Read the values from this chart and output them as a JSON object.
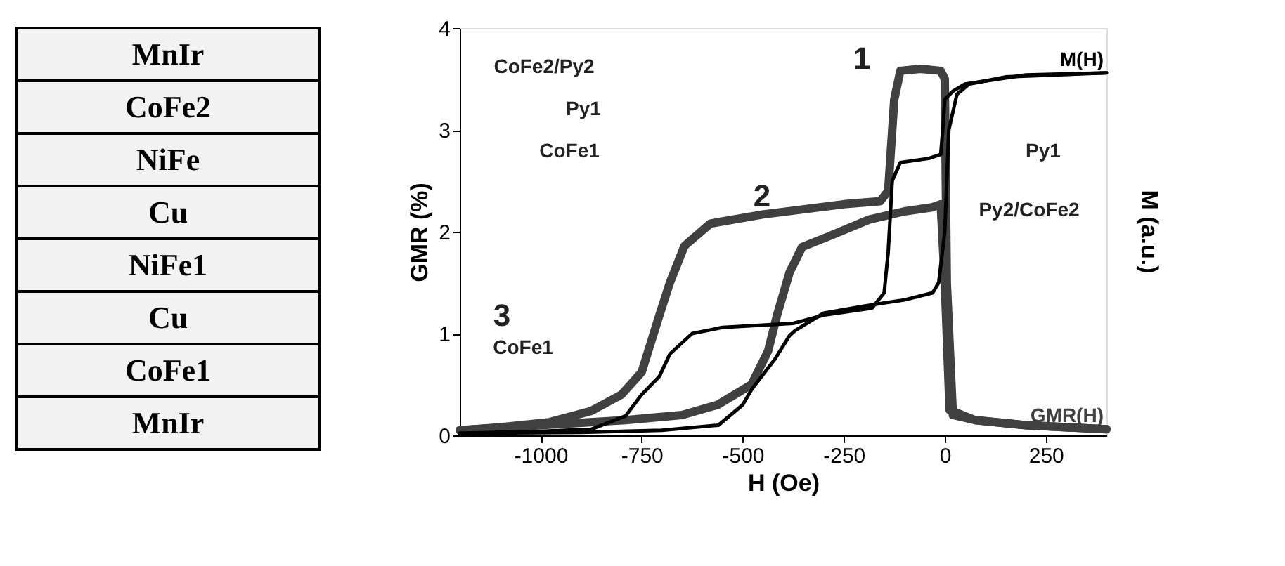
{
  "chart_data": [
    {
      "type": "other",
      "annotations": [
        "MnIr",
        "CoFe2",
        "NiFe",
        "Cu",
        "NiFe1",
        "Cu",
        "CoFe1",
        "MnIr"
      ]
    },
    {
      "type": "line",
      "xlabel": "H (Oe)",
      "ylabel": "GMR (%)",
      "y2label": "M (a.u.)",
      "xlim": [
        -1200,
        400
      ],
      "xticks": [
        -1000,
        -750,
        -500,
        -250,
        0,
        250
      ],
      "ylim": [
        0,
        4
      ],
      "yticks": [
        0,
        1,
        2,
        3,
        4
      ],
      "grid": false,
      "legend": false,
      "series": [
        {
          "name": "GMR(H)",
          "color": "#404040",
          "x": [
            400,
            200,
            75,
            20,
            5,
            0,
            -10,
            -60,
            -110,
            -125,
            -140,
            -160,
            -250,
            -350,
            -450,
            -580,
            -644,
            -680,
            -706,
            -750,
            -800,
            -875,
            -978,
            -1100,
            -1200
          ],
          "values": [
            0.06,
            0.1,
            0.15,
            0.2,
            1.5,
            3.5,
            3.58,
            3.6,
            3.58,
            3.3,
            2.4,
            2.3,
            2.27,
            2.22,
            2.17,
            2.08,
            1.86,
            1.5,
            1.18,
            0.62,
            0.4,
            0.24,
            0.13,
            0.08,
            0.05
          ]
        },
        {
          "color": "#404040",
          "x": [
            -1200,
            -1000,
            -790,
            -650,
            -562,
            -478,
            -437,
            -415,
            -384,
            -353,
            -290,
            -187,
            -100,
            -31,
            -10,
            0,
            12,
            75,
            200,
            400
          ],
          "values": [
            0.05,
            0.1,
            0.15,
            0.2,
            0.3,
            0.5,
            0.83,
            1.18,
            1.6,
            1.85,
            1.95,
            2.12,
            2.2,
            2.24,
            2.27,
            1.5,
            0.25,
            0.15,
            0.1,
            0.06
          ]
        },
        {
          "name": "M(H)",
          "color": "#000000",
          "x": [
            400,
            200,
            50,
            20,
            0,
            -5,
            -10,
            -40,
            -110,
            -130,
            -140,
            -150,
            -180,
            -300,
            -375,
            -550,
            -625,
            -680,
            -706,
            -750,
            -790,
            -875,
            -1000,
            -1200
          ],
          "values": [
            3.56,
            3.54,
            3.45,
            3.38,
            3.3,
            3.0,
            2.76,
            2.72,
            2.68,
            2.5,
            1.8,
            1.4,
            1.25,
            1.18,
            1.1,
            1.06,
            1.0,
            0.8,
            0.58,
            0.4,
            0.19,
            0.06,
            0.04,
            0.02
          ]
        },
        {
          "color": "#000000",
          "x": [
            -1200,
            -900,
            -700,
            -560,
            -500,
            -478,
            -420,
            -384,
            -370,
            -300,
            -200,
            -100,
            -30,
            -15,
            0,
            10,
            30,
            60,
            150,
            400
          ],
          "values": [
            0.02,
            0.03,
            0.05,
            0.1,
            0.3,
            0.45,
            0.75,
            0.98,
            1.03,
            1.2,
            1.27,
            1.33,
            1.4,
            1.5,
            2.0,
            3.0,
            3.35,
            3.45,
            3.52,
            3.56
          ]
        }
      ],
      "annotations": [
        "CoFe2/Py2",
        "Py1",
        "CoFe1",
        "1",
        "2",
        "3",
        "Py1",
        "Py2/CoFe2",
        "CoFe1"
      ]
    }
  ]
}
